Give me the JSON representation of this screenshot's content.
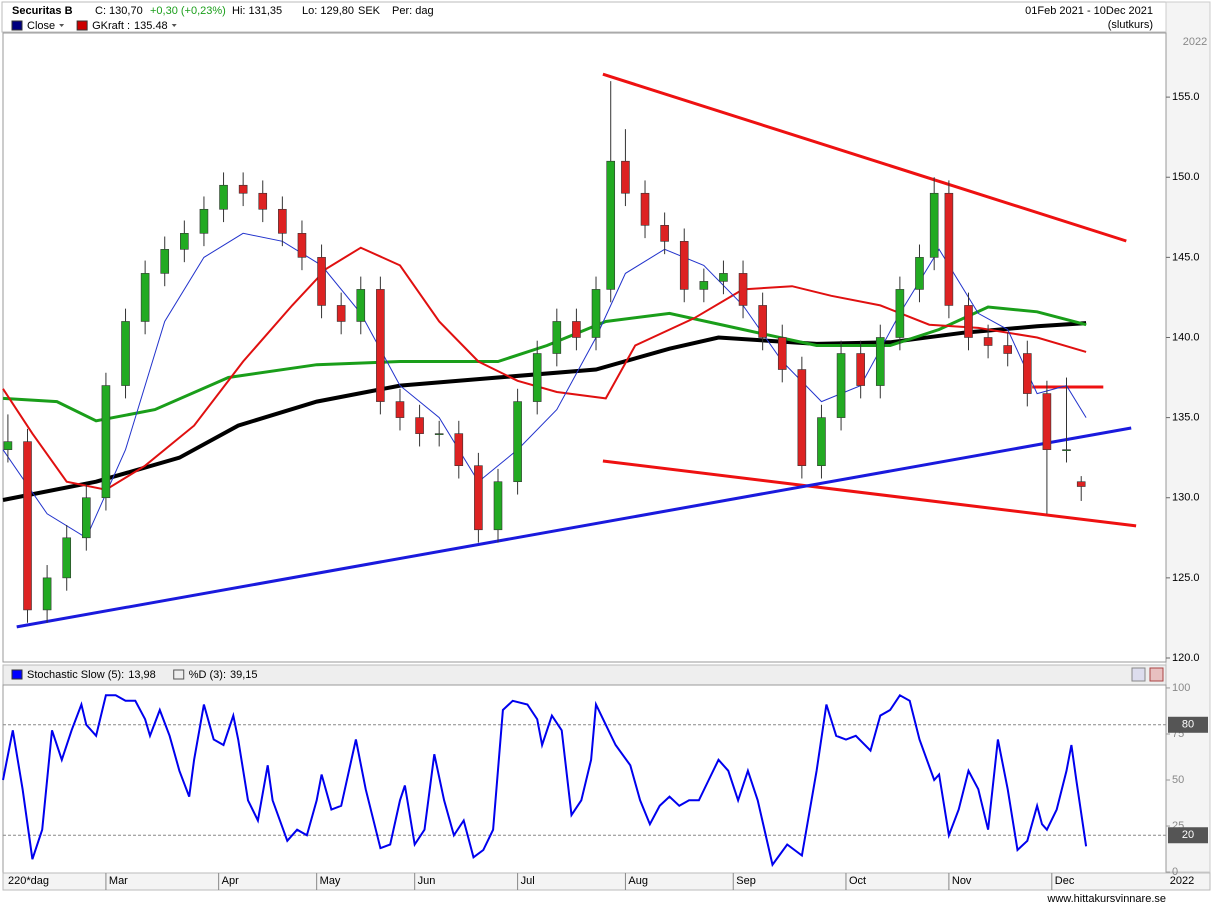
{
  "header": {
    "title": "Securitas B",
    "close": "C: 130,70",
    "change": "+0,30 (+0,23%)",
    "high": "Hi: 131,35",
    "low": "Lo: 129,80",
    "currency": "SEK",
    "period": "Per: dag",
    "date_range": "01Feb 2021 - 10Dec 2021",
    "note": "(slutkurs)",
    "bars_label": "220*dag",
    "year_top": "2022",
    "year_bottom": "2022",
    "watermark": "www.hittakursvinnare.se"
  },
  "chart_data": [
    {
      "type": "candlestick",
      "legend": [
        {
          "name": "Close",
          "color": "#00007f"
        },
        {
          "name": "GKraft :",
          "value": 135.48,
          "color": "#cc0000"
        }
      ],
      "x": [
        0,
        4,
        8,
        12,
        16,
        20,
        24,
        28,
        32,
        36,
        40,
        44,
        48,
        52,
        56,
        60,
        64,
        68,
        72,
        76,
        80,
        84,
        88,
        92,
        96,
        100,
        104,
        108,
        112,
        116,
        120,
        123,
        126,
        130,
        134,
        138,
        142,
        146,
        150,
        154,
        158,
        162,
        166,
        170,
        174,
        178,
        182,
        186,
        189,
        192,
        196,
        200,
        204,
        208,
        212,
        216,
        219
      ],
      "open": [
        133,
        133.5,
        123,
        125,
        127.5,
        130,
        137,
        141,
        144,
        145.5,
        146.5,
        148,
        149.5,
        149,
        148,
        146.5,
        145,
        142,
        141,
        143,
        136,
        135,
        134,
        134,
        132,
        128,
        131,
        136,
        139,
        141,
        140,
        143,
        151,
        149,
        147,
        146,
        143,
        143.5,
        144,
        142,
        140,
        138,
        132,
        135,
        139,
        137,
        140,
        143,
        145,
        149,
        142,
        140,
        139.5,
        139,
        136.5,
        133,
        131
      ],
      "high": [
        135.2,
        134.3,
        125.8,
        128.3,
        130.8,
        137.8,
        141.8,
        144.8,
        146.3,
        147.3,
        148.8,
        150.3,
        150.3,
        149.8,
        148.8,
        147.3,
        145.8,
        142.8,
        143.8,
        143.8,
        136.8,
        135.8,
        134.8,
        134.8,
        132.8,
        131.8,
        136.8,
        139.8,
        141.8,
        141.8,
        143.8,
        156,
        153,
        149.8,
        147.8,
        146.8,
        144.3,
        144.8,
        144.8,
        142.8,
        140.8,
        138.8,
        135.8,
        139.8,
        139.8,
        140.8,
        143.8,
        145.8,
        150,
        149.8,
        142.8,
        140.8,
        140.3,
        139.8,
        137.3,
        137.5,
        131.35
      ],
      "low": [
        132.2,
        122.2,
        122.2,
        124.2,
        126.7,
        129.2,
        136.2,
        140.2,
        143.2,
        144.7,
        145.7,
        147.2,
        148.2,
        147.2,
        145.7,
        144.2,
        141.2,
        140.2,
        140.2,
        135.2,
        134.2,
        133.2,
        133.2,
        131.2,
        127.2,
        127.2,
        130.2,
        135.2,
        138.2,
        139.2,
        139.2,
        142.2,
        148.2,
        146.2,
        145.2,
        142.2,
        142.2,
        142.7,
        141.2,
        139.2,
        137.2,
        131.2,
        131.2,
        134.2,
        136.2,
        136.2,
        139.2,
        142.2,
        144.2,
        141.2,
        139.2,
        138.7,
        138.2,
        135.7,
        129,
        132.2,
        129.8
      ],
      "close": [
        133.5,
        123,
        125,
        127.5,
        130,
        137,
        141,
        144,
        145.5,
        146.5,
        148,
        149.5,
        149,
        148,
        146.5,
        145,
        142,
        141,
        143,
        136,
        135,
        134,
        134,
        132,
        128,
        131,
        136,
        139,
        141,
        140,
        143,
        151,
        149,
        147,
        146,
        143,
        143.5,
        144,
        142,
        140,
        138,
        132,
        135,
        139,
        137,
        140,
        143,
        145,
        149,
        142,
        140,
        139.5,
        139,
        136.5,
        133,
        133,
        130.7
      ],
      "up_color": "#22aa22",
      "down_color": "#dd2222",
      "lines": [
        {
          "color": "#000000",
          "width": 4,
          "x": [
            -1,
            18,
            35,
            47,
            63,
            80,
            100,
            120,
            135,
            145,
            165,
            180,
            195,
            210,
            220
          ],
          "values": [
            129.86,
            131,
            132.5,
            134.5,
            136,
            137,
            137.5,
            138,
            139.3,
            140,
            139.6,
            139.7,
            140.3,
            140.7,
            140.9
          ]
        },
        {
          "color": "#1a9e1a",
          "width": 3,
          "x": [
            -1,
            10,
            18,
            30,
            45,
            63,
            80,
            100,
            110,
            122,
            135,
            150,
            165,
            180,
            190,
            200,
            210,
            220
          ],
          "values": [
            136.2,
            136,
            134.8,
            135.5,
            137.5,
            138.3,
            138.5,
            138.5,
            139.5,
            141,
            141.5,
            140.5,
            139.5,
            139.5,
            140.5,
            141.9,
            141.6,
            140.8
          ]
        },
        {
          "color": "#e01010",
          "width": 2,
          "x": [
            -1,
            5,
            12,
            20,
            28,
            38,
            48,
            58,
            65,
            72,
            80,
            88,
            96,
            104,
            112,
            122,
            128,
            140,
            150,
            160,
            168,
            178,
            188,
            198,
            210,
            220
          ],
          "values": [
            136.8,
            134,
            131,
            130.5,
            132,
            134.5,
            138.5,
            142,
            144.3,
            145.6,
            144.5,
            141,
            138.5,
            137.3,
            136.6,
            136.2,
            139.5,
            141.2,
            143,
            143.2,
            142.6,
            142,
            140.8,
            140.6,
            140,
            139.1
          ]
        },
        {
          "color": "#2233cc",
          "width": 1,
          "x": [
            -1,
            8,
            16,
            24,
            32,
            40,
            48,
            56,
            64,
            72,
            80,
            88,
            96,
            104,
            112,
            120,
            126,
            134,
            142,
            150,
            158,
            166,
            174,
            182,
            190,
            198,
            204,
            210,
            216,
            220
          ],
          "values": [
            133,
            129,
            127.5,
            133,
            141,
            145,
            146.5,
            146,
            144.5,
            141.5,
            137,
            135,
            131,
            133,
            135.5,
            140,
            144,
            145.5,
            144.5,
            142,
            138.5,
            136,
            137,
            141.5,
            145.5,
            141.5,
            140.5,
            136.5,
            137,
            135
          ]
        }
      ],
      "trendlines": [
        {
          "color": "#ee1111",
          "x": [
            121.4,
            228.2
          ],
          "values": [
            156.43,
            146.02
          ]
        },
        {
          "color": "#ee1111",
          "x": [
            121.4,
            230.2
          ],
          "values": [
            132.29,
            128.24
          ]
        },
        {
          "color": "#1a1add",
          "x": [
            1.8,
            229.2
          ],
          "values": [
            121.94,
            134.35
          ]
        },
        {
          "color": "#ee1111",
          "x": [
            209,
            223.5
          ],
          "values": [
            136.91,
            136.91
          ]
        }
      ],
      "xlim": [
        -1,
        236.3
      ],
      "ylim": [
        119.75,
        159
      ],
      "yticks": [
        {
          "value": 120,
          "label": "120.0"
        },
        {
          "value": 125,
          "label": "125.0"
        },
        {
          "value": 130,
          "label": "130.0"
        },
        {
          "value": 135,
          "label": "135.0"
        },
        {
          "value": 140,
          "label": "140.0"
        },
        {
          "value": 145,
          "label": "145.0"
        },
        {
          "value": 150,
          "label": "150.0"
        },
        {
          "value": 155,
          "label": "155.0"
        }
      ]
    },
    {
      "type": "line",
      "legend": [
        {
          "name": "Stochastic Slow (5):",
          "value": "13,98",
          "color": "#0000ff"
        },
        {
          "name": "%D (3):",
          "value": "39,15"
        }
      ],
      "series": [
        {
          "color": "#0000ee",
          "x": [
            -1,
            1,
            3,
            5,
            7,
            9,
            11,
            13,
            15,
            16,
            18,
            20,
            22,
            24,
            26,
            28,
            29,
            31,
            33,
            35,
            37,
            38,
            40,
            42,
            44,
            46,
            47,
            49,
            51,
            53,
            54,
            57,
            59,
            61,
            63,
            64,
            66,
            68,
            71,
            73,
            76,
            78,
            80,
            81,
            83,
            85,
            87,
            89,
            91,
            93,
            95,
            97,
            99,
            101,
            103,
            106,
            108,
            109,
            111,
            113,
            115,
            117,
            119,
            120,
            122,
            124,
            127,
            129,
            131,
            133,
            135,
            137,
            139,
            141,
            143,
            145,
            147,
            149,
            151,
            153,
            156,
            159,
            162,
            165,
            167,
            169,
            171,
            173,
            176,
            178,
            180,
            182,
            184,
            186,
            189,
            190,
            192,
            194,
            196,
            198,
            200,
            202,
            204,
            206,
            208,
            210,
            211,
            212,
            214,
            216,
            217,
            218,
            220
          ],
          "values": [
            50,
            77,
            45,
            7,
            23,
            77,
            61,
            77,
            91,
            80,
            74,
            96,
            96,
            93,
            93,
            83,
            74,
            88,
            74,
            55,
            41,
            61,
            91,
            72,
            69,
            85,
            72,
            39,
            28,
            58,
            39,
            17,
            23,
            20,
            39,
            53,
            34,
            36,
            72,
            45,
            13,
            15,
            39,
            47,
            15,
            23,
            64,
            39,
            20,
            28,
            8,
            12,
            23,
            88,
            93,
            91,
            83,
            69,
            85,
            77,
            31,
            39,
            61,
            91,
            80,
            69,
            58,
            39,
            26,
            36,
            41,
            36,
            39,
            39,
            50,
            61,
            55,
            39,
            55,
            39,
            4,
            15,
            9,
            55,
            91,
            74,
            72,
            74,
            66,
            85,
            88,
            96,
            93,
            72,
            50,
            53,
            20,
            34,
            55,
            45,
            23,
            72,
            45,
            12,
            17,
            36,
            26,
            23,
            34,
            55,
            69,
            50,
            13.98
          ]
        }
      ],
      "hlines": [
        80,
        20
      ],
      "xlim": [
        -1,
        236.3
      ],
      "ylim": [
        -0.5,
        101.6
      ],
      "yticks": [
        0,
        25,
        50,
        75,
        100
      ],
      "xticks": [
        {
          "value": 20,
          "label": "Mar"
        },
        {
          "value": 43,
          "label": "Apr"
        },
        {
          "value": 63,
          "label": "May"
        },
        {
          "value": 83,
          "label": "Jun"
        },
        {
          "value": 104,
          "label": "Jul"
        },
        {
          "value": 126,
          "label": "Aug"
        },
        {
          "value": 148,
          "label": "Sep"
        },
        {
          "value": 171,
          "label": "Oct"
        },
        {
          "value": 192,
          "label": "Nov"
        },
        {
          "value": 213,
          "label": "Dec"
        }
      ]
    }
  ]
}
